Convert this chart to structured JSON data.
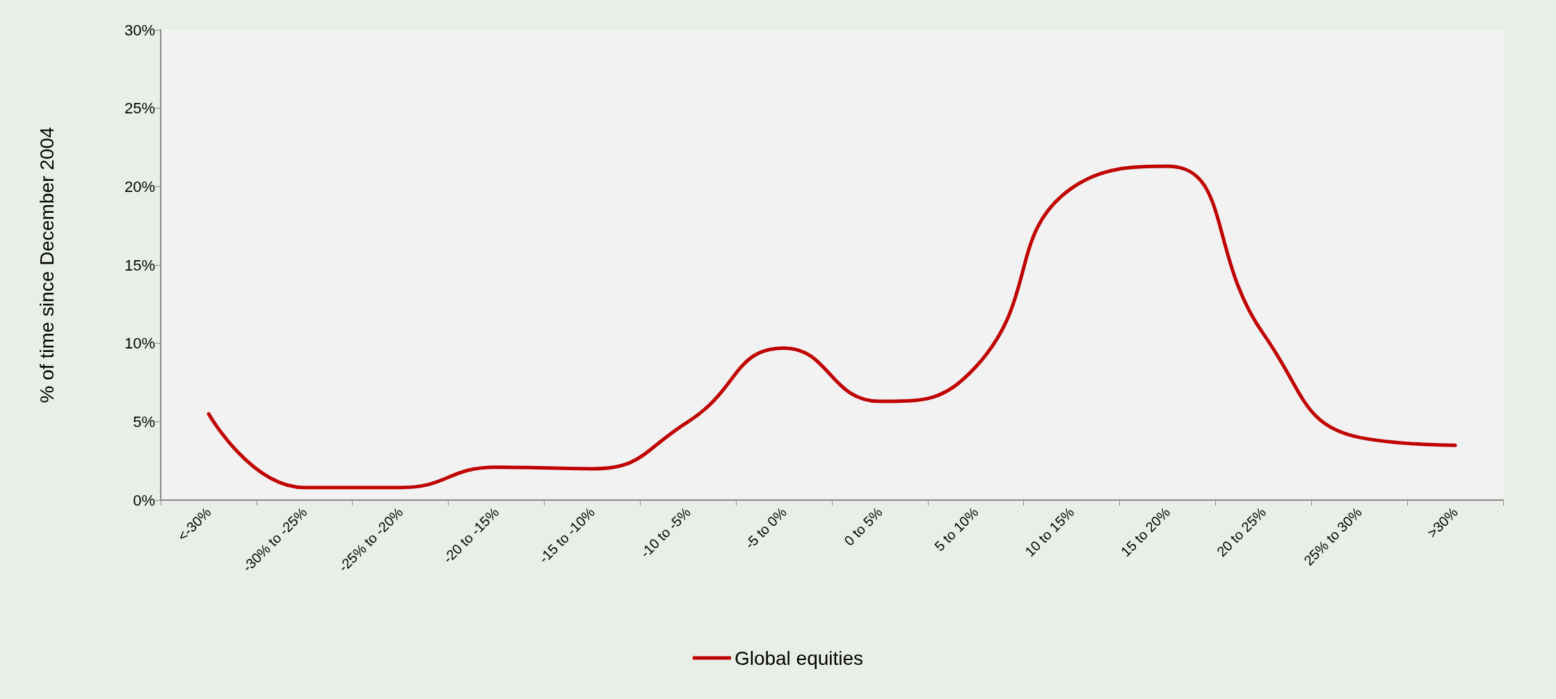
{
  "chart_data": {
    "type": "line",
    "ylabel": "% of time since December 2004",
    "categories": [
      "<-30%",
      "-30% to -25%",
      "-25% to -20%",
      "-20 to -15%",
      "-15 to -10%",
      "-10 to -5%",
      "-5 to 0%",
      "0 to 5%",
      "5 to 10%",
      "10 to 15%",
      "15 to 20%",
      "20 to 25%",
      "25% to 30%",
      ">30%"
    ],
    "series": [
      {
        "name": "Global equities",
        "color": "#c00000",
        "values": [
          5.5,
          0.8,
          0.8,
          2.1,
          2.0,
          5.0,
          9.7,
          6.3,
          8.5,
          19.9,
          21.3,
          10.6,
          4.0,
          3.5
        ]
      }
    ],
    "ylim": [
      0,
      30
    ],
    "yticks": [
      {
        "value": 0,
        "label": "0%"
      },
      {
        "value": 5,
        "label": "5%"
      },
      {
        "value": 10,
        "label": "10%"
      },
      {
        "value": 15,
        "label": "15%"
      },
      {
        "value": 20,
        "label": "20%"
      },
      {
        "value": 25,
        "label": "25%"
      },
      {
        "value": 30,
        "label": "30%"
      }
    ],
    "grid": false,
    "legend": "bottom",
    "marker": "none",
    "line_style": "solid"
  }
}
